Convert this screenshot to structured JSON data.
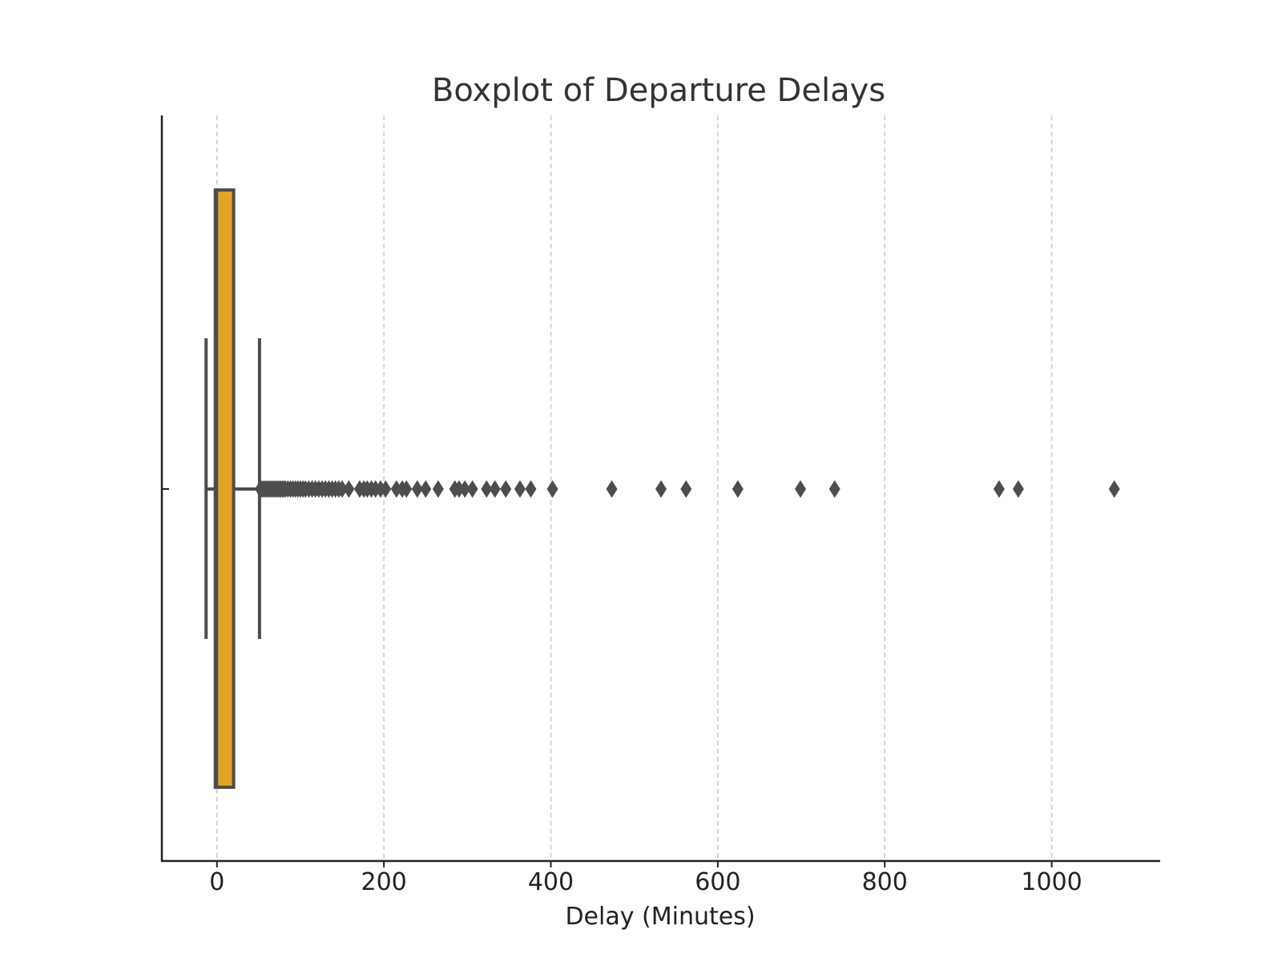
{
  "chart_data": {
    "type": "boxplot",
    "title": "Boxplot of Departure Delays",
    "xlabel": "Delay (Minutes)",
    "ylabel": "",
    "xlim": [
      -66,
      1130
    ],
    "x_ticks": [
      0,
      200,
      400,
      600,
      800,
      1000
    ],
    "x_tick_labels": [
      "0",
      "200",
      "400",
      "600",
      "800",
      "1000"
    ],
    "orientation": "horizontal",
    "grid": "vertical dashed",
    "box_color": "#E0A427",
    "line_color": "#4D4D4D",
    "box": {
      "whisker_low": -13,
      "q1": -2,
      "median": 0,
      "q3": 20,
      "whisker_high": 51
    },
    "outliers": [
      52,
      54,
      56,
      58,
      60,
      62,
      64,
      66,
      68,
      70,
      72,
      74,
      76,
      78,
      80,
      82,
      85,
      88,
      91,
      94,
      97,
      100,
      103,
      106,
      110,
      114,
      118,
      122,
      126,
      130,
      134,
      138,
      142,
      146,
      150,
      158,
      171,
      176,
      180,
      185,
      190,
      196,
      202,
      215,
      222,
      227,
      240,
      250,
      265,
      285,
      290,
      297,
      306,
      323,
      333,
      346,
      363,
      376,
      402,
      473,
      532,
      562,
      624,
      699,
      740,
      937,
      960,
      1075
    ]
  }
}
